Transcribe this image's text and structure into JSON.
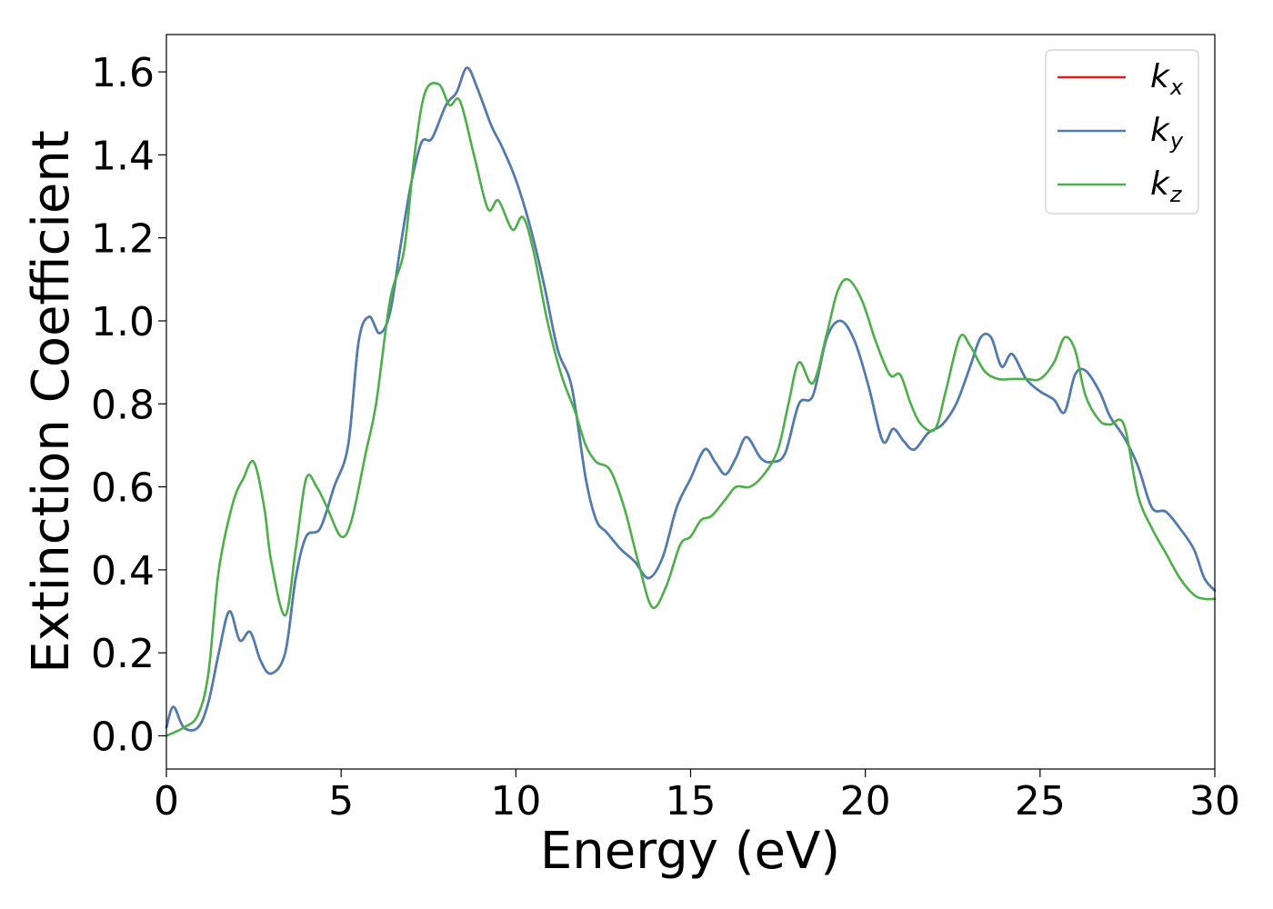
{
  "chart_data": {
    "type": "line",
    "xlabel": "Energy (eV)",
    "ylabel": "Extinction Coefficient",
    "xlim": [
      0,
      30
    ],
    "ylim": [
      -0.08,
      1.69
    ],
    "xticks": [
      0,
      5,
      10,
      15,
      20,
      25,
      30
    ],
    "xtick_labels": [
      "0",
      "5",
      "10",
      "15",
      "20",
      "25",
      "30"
    ],
    "yticks": [
      0.0,
      0.2,
      0.4,
      0.6,
      0.8,
      1.0,
      1.2,
      1.4,
      1.6
    ],
    "ytick_labels": [
      "0.0",
      "0.2",
      "0.4",
      "0.6",
      "0.8",
      "1.0",
      "1.2",
      "1.4",
      "1.6"
    ],
    "grid": false,
    "legend_position": "top-right",
    "series": [
      {
        "name": "k_x",
        "legend_base": "k",
        "legend_sub": "x",
        "color": "#e41a1c",
        "x": [
          0,
          0.2,
          0.5,
          0.9,
          1.2,
          1.5,
          1.8,
          2.1,
          2.4,
          2.7,
          3.0,
          3.4,
          3.7,
          4.0,
          4.4,
          4.8,
          5.2,
          5.5,
          5.8,
          6.1,
          6.4,
          6.7,
          7.0,
          7.3,
          7.6,
          8.0,
          8.3,
          8.6,
          8.9,
          9.3,
          9.6,
          10.0,
          10.4,
          10.8,
          11.2,
          11.6,
          12.0,
          12.3,
          12.6,
          13.0,
          13.4,
          13.8,
          14.2,
          14.6,
          15.0,
          15.4,
          15.7,
          16.0,
          16.3,
          16.6,
          17.0,
          17.3,
          17.7,
          18.1,
          18.5,
          18.9,
          19.3,
          19.7,
          20.1,
          20.5,
          20.8,
          21.1,
          21.4,
          21.8,
          22.2,
          22.6,
          23.0,
          23.3,
          23.6,
          23.9,
          24.2,
          24.6,
          25.0,
          25.4,
          25.7,
          26.0,
          26.3,
          26.7,
          27.0,
          27.4,
          27.8,
          28.2,
          28.6,
          29.0,
          29.4,
          29.7,
          30.0
        ],
        "y": [
          0.02,
          0.07,
          0.02,
          0.02,
          0.08,
          0.2,
          0.3,
          0.23,
          0.25,
          0.18,
          0.15,
          0.2,
          0.38,
          0.48,
          0.5,
          0.6,
          0.7,
          0.95,
          1.01,
          0.97,
          1.02,
          1.18,
          1.33,
          1.43,
          1.44,
          1.52,
          1.55,
          1.61,
          1.56,
          1.47,
          1.42,
          1.34,
          1.23,
          1.09,
          0.93,
          0.84,
          0.62,
          0.52,
          0.49,
          0.45,
          0.42,
          0.38,
          0.43,
          0.55,
          0.62,
          0.69,
          0.66,
          0.63,
          0.67,
          0.72,
          0.67,
          0.66,
          0.68,
          0.8,
          0.82,
          0.96,
          1.0,
          0.95,
          0.84,
          0.71,
          0.74,
          0.71,
          0.69,
          0.73,
          0.75,
          0.8,
          0.89,
          0.96,
          0.96,
          0.89,
          0.92,
          0.86,
          0.83,
          0.81,
          0.78,
          0.87,
          0.88,
          0.83,
          0.77,
          0.72,
          0.65,
          0.55,
          0.54,
          0.5,
          0.45,
          0.38,
          0.35
        ]
      },
      {
        "name": "k_y",
        "legend_base": "k",
        "legend_sub": "y",
        "color": "#4a7fb5",
        "x": [
          0,
          0.2,
          0.5,
          0.9,
          1.2,
          1.5,
          1.8,
          2.1,
          2.4,
          2.7,
          3.0,
          3.4,
          3.7,
          4.0,
          4.4,
          4.8,
          5.2,
          5.5,
          5.8,
          6.1,
          6.4,
          6.7,
          7.0,
          7.3,
          7.6,
          8.0,
          8.3,
          8.6,
          8.9,
          9.3,
          9.6,
          10.0,
          10.4,
          10.8,
          11.2,
          11.6,
          12.0,
          12.3,
          12.6,
          13.0,
          13.4,
          13.8,
          14.2,
          14.6,
          15.0,
          15.4,
          15.7,
          16.0,
          16.3,
          16.6,
          17.0,
          17.3,
          17.7,
          18.1,
          18.5,
          18.9,
          19.3,
          19.7,
          20.1,
          20.5,
          20.8,
          21.1,
          21.4,
          21.8,
          22.2,
          22.6,
          23.0,
          23.3,
          23.6,
          23.9,
          24.2,
          24.6,
          25.0,
          25.4,
          25.7,
          26.0,
          26.3,
          26.7,
          27.0,
          27.4,
          27.8,
          28.2,
          28.6,
          29.0,
          29.4,
          29.7,
          30.0
        ],
        "y": [
          0.02,
          0.07,
          0.02,
          0.02,
          0.08,
          0.2,
          0.3,
          0.23,
          0.25,
          0.18,
          0.15,
          0.2,
          0.38,
          0.48,
          0.5,
          0.6,
          0.7,
          0.95,
          1.01,
          0.97,
          1.02,
          1.18,
          1.33,
          1.43,
          1.44,
          1.52,
          1.55,
          1.61,
          1.56,
          1.47,
          1.42,
          1.34,
          1.23,
          1.09,
          0.93,
          0.84,
          0.62,
          0.52,
          0.49,
          0.45,
          0.42,
          0.38,
          0.43,
          0.55,
          0.62,
          0.69,
          0.66,
          0.63,
          0.67,
          0.72,
          0.67,
          0.66,
          0.68,
          0.8,
          0.82,
          0.96,
          1.0,
          0.95,
          0.84,
          0.71,
          0.74,
          0.71,
          0.69,
          0.73,
          0.75,
          0.8,
          0.89,
          0.96,
          0.96,
          0.89,
          0.92,
          0.86,
          0.83,
          0.81,
          0.78,
          0.87,
          0.88,
          0.83,
          0.77,
          0.72,
          0.65,
          0.55,
          0.54,
          0.5,
          0.45,
          0.38,
          0.35
        ]
      },
      {
        "name": "k_z",
        "legend_base": "k",
        "legend_sub": "z",
        "color": "#4daf4a",
        "x": [
          0,
          0.5,
          0.9,
          1.2,
          1.5,
          1.9,
          2.2,
          2.5,
          2.8,
          3.0,
          3.4,
          3.7,
          4.0,
          4.3,
          4.6,
          5.0,
          5.3,
          5.7,
          6.0,
          6.4,
          6.8,
          7.1,
          7.4,
          7.8,
          8.1,
          8.4,
          8.8,
          9.2,
          9.5,
          9.9,
          10.2,
          10.5,
          10.9,
          11.3,
          11.7,
          12.0,
          12.3,
          12.7,
          13.1,
          13.5,
          13.9,
          14.3,
          14.7,
          15.0,
          15.3,
          15.6,
          16.0,
          16.3,
          16.7,
          17.1,
          17.5,
          17.8,
          18.1,
          18.5,
          18.9,
          19.2,
          19.5,
          19.9,
          20.3,
          20.7,
          21.0,
          21.3,
          21.6,
          22.0,
          22.3,
          22.7,
          23.0,
          23.4,
          23.8,
          24.2,
          24.6,
          25.0,
          25.4,
          25.7,
          26.0,
          26.3,
          26.7,
          27.0,
          27.4,
          27.8,
          28.2,
          28.6,
          29.0,
          29.4,
          29.7,
          30.0
        ],
        "y": [
          0.0,
          0.02,
          0.05,
          0.15,
          0.4,
          0.56,
          0.62,
          0.66,
          0.55,
          0.42,
          0.29,
          0.45,
          0.62,
          0.6,
          0.55,
          0.48,
          0.52,
          0.68,
          0.8,
          1.05,
          1.17,
          1.4,
          1.55,
          1.57,
          1.52,
          1.53,
          1.4,
          1.27,
          1.29,
          1.22,
          1.25,
          1.17,
          1.0,
          0.87,
          0.78,
          0.7,
          0.66,
          0.64,
          0.55,
          0.42,
          0.31,
          0.36,
          0.46,
          0.48,
          0.52,
          0.53,
          0.57,
          0.6,
          0.6,
          0.63,
          0.69,
          0.8,
          0.9,
          0.85,
          0.97,
          1.07,
          1.1,
          1.05,
          0.95,
          0.87,
          0.87,
          0.8,
          0.75,
          0.74,
          0.83,
          0.96,
          0.94,
          0.88,
          0.86,
          0.86,
          0.86,
          0.86,
          0.9,
          0.96,
          0.93,
          0.82,
          0.76,
          0.75,
          0.75,
          0.58,
          0.5,
          0.44,
          0.38,
          0.34,
          0.33,
          0.33
        ]
      }
    ]
  }
}
